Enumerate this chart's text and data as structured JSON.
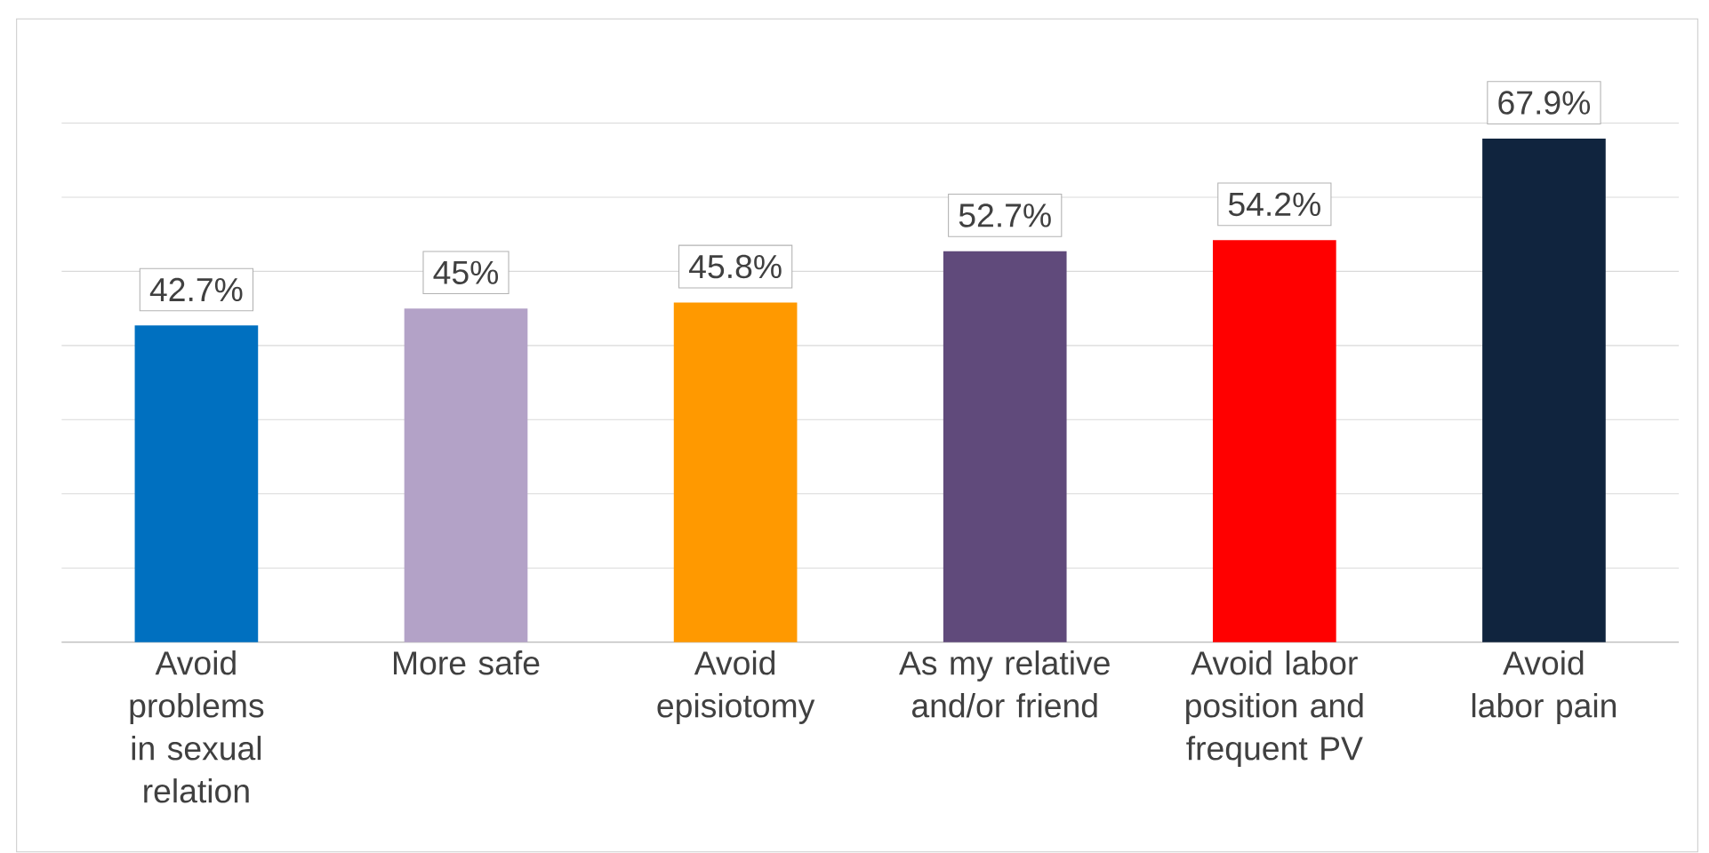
{
  "chart_data": {
    "type": "bar",
    "categories": [
      "Avoid problems in sexual relation",
      "More safe",
      "Avoid episiotomy",
      "As my relative and/or friend",
      "Avoid labor position and frequent PV",
      "Avoid labor pain"
    ],
    "values": [
      42.7,
      45,
      45.8,
      52.7,
      54.2,
      67.9
    ],
    "value_labels": [
      "42.7%",
      "45%",
      "45.8%",
      "52.7%",
      "54.2%",
      "67.9%"
    ],
    "colors": [
      "#0070c0",
      "#b3a2c7",
      "#ff9900",
      "#604a7b",
      "#ff0000",
      "#10243e"
    ],
    "grid": "y",
    "tick_labels": "x"
  }
}
